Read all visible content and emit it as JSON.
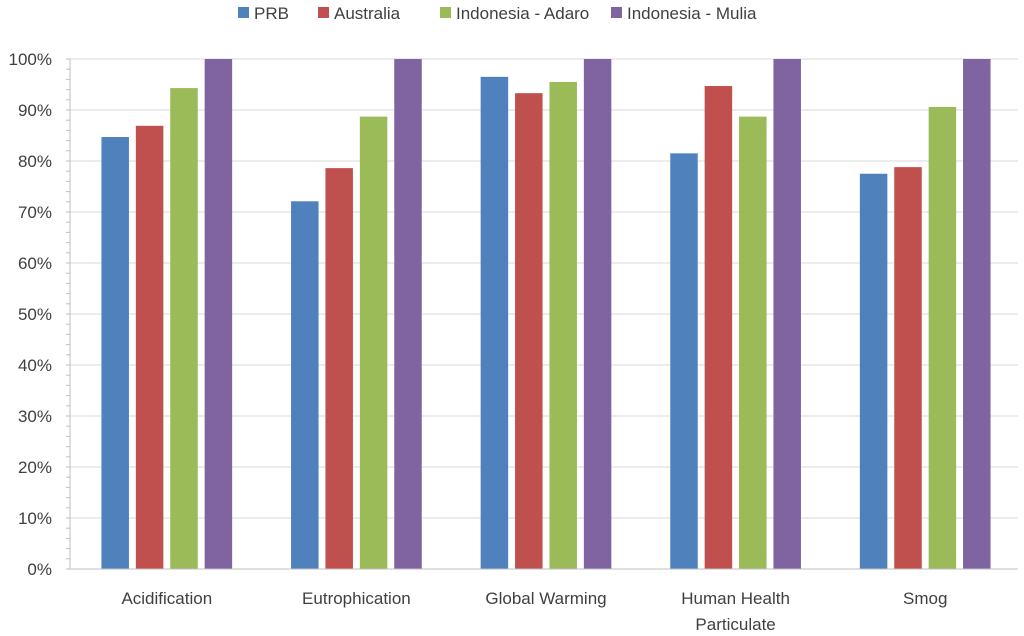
{
  "chart_data": {
    "type": "bar",
    "title": "",
    "xlabel": "",
    "ylabel": "",
    "ylim": [
      0,
      100
    ],
    "yticks": [
      0,
      10,
      20,
      30,
      40,
      50,
      60,
      70,
      80,
      90,
      100
    ],
    "ytick_labels": [
      "0%",
      "10%",
      "20%",
      "30%",
      "40%",
      "50%",
      "60%",
      "70%",
      "80%",
      "90%",
      "100%"
    ],
    "categories": [
      [
        "Acidification"
      ],
      [
        "Eutrophication"
      ],
      [
        "Global Warming"
      ],
      [
        "Human Health",
        "Particulate"
      ],
      [
        "Smog"
      ]
    ],
    "legend_position": "top",
    "grid": true,
    "series": [
      {
        "name": "PRB",
        "color": "#4f81bd",
        "values": [
          84.7,
          72.1,
          96.5,
          81.5,
          77.5
        ]
      },
      {
        "name": "Australia",
        "color": "#c0504d",
        "values": [
          86.9,
          78.6,
          93.3,
          94.7,
          78.8
        ]
      },
      {
        "name": "Indonesia - Adaro",
        "color": "#9bbb59",
        "values": [
          94.3,
          88.7,
          95.5,
          88.7,
          90.6
        ]
      },
      {
        "name": "Indonesia - Mulia",
        "color": "#8064a2",
        "values": [
          100,
          100,
          100,
          100,
          100
        ]
      }
    ]
  }
}
